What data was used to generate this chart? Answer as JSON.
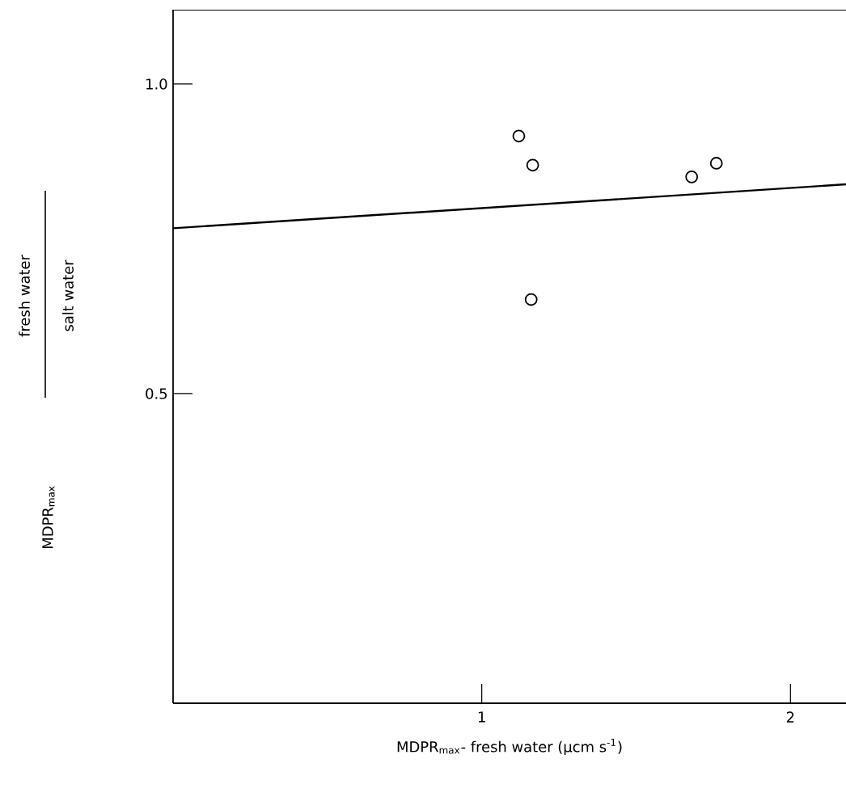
{
  "chart_data": {
    "type": "scatter",
    "xlabel": "MDPR$_{max}$- fresh water (µcm s$^{-1}$)",
    "annotations": [
      "fresh water",
      "salt water",
      "MDPR$_{max}$"
    ],
    "xlim": [
      0,
      2.18
    ],
    "ylim": [
      0,
      1.12
    ],
    "xticks": [
      1,
      2
    ],
    "yticks": [
      {
        "value": 0.5,
        "label": "0.5"
      },
      {
        "value": 1.0,
        "label": "1.0"
      }
    ],
    "marker": "circle",
    "series": [
      {
        "color": "#000000",
        "x": [
          1.12,
          1.165,
          1.16,
          1.68,
          1.76
        ],
        "values": [
          0.916,
          0.869,
          0.652,
          0.85,
          0.872
        ]
      },
      {
        "type": "line",
        "color": "#000000",
        "marker": "none",
        "x": [
          0,
          2.18
        ],
        "values": [
          0.767,
          0.838
        ]
      }
    ]
  }
}
